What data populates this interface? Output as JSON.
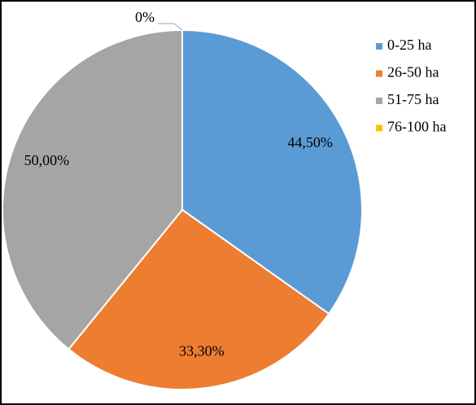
{
  "chart_data": {
    "type": "pie",
    "categories": [
      "0-25 ha",
      "26-50 ha",
      "51-75 ha",
      "76-100 ha"
    ],
    "values": [
      44.5,
      33.3,
      50,
      0
    ],
    "value_labels": [
      "44,50%",
      "33,30%",
      "50,00%",
      "0%"
    ],
    "colors": [
      "#5b9bd5",
      "#ed7d31",
      "#a5a5a5",
      "#ffc000"
    ],
    "legend": "right"
  }
}
